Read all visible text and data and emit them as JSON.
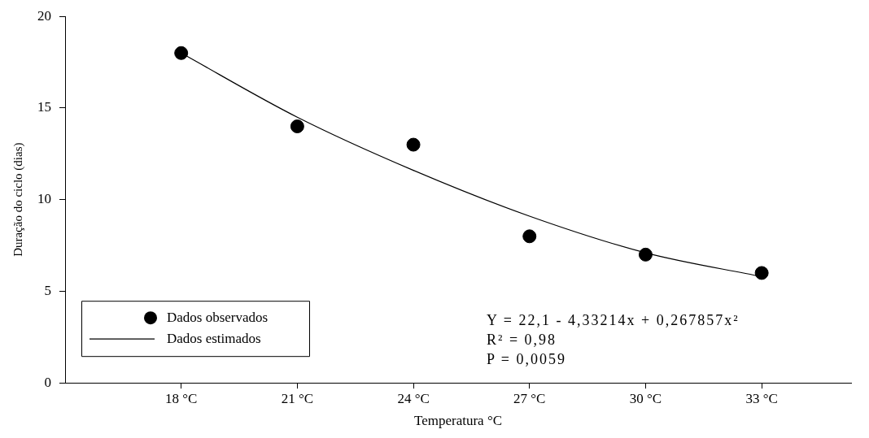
{
  "chart_data": {
    "type": "scatter",
    "xlabel": "Temperatura °C",
    "ylabel": "Duração do ciclo (dias)",
    "categories": [
      "18 °C",
      "21 °C",
      "24 °C",
      "27 °C",
      "30 °C",
      "33 °C"
    ],
    "series": [
      {
        "name": "Dados observados",
        "color": "#000000",
        "marker": "circle",
        "values": [
          18,
          14,
          13,
          8,
          7,
          6
        ]
      },
      {
        "name": "Dados estimados",
        "type": "line",
        "color": "#000000",
        "marker": "none",
        "line_style": "solid",
        "values": [
          18.0,
          14.5,
          11.6,
          9.1,
          7.1,
          5.8
        ]
      }
    ],
    "ylim": [
      0,
      20
    ],
    "yticks": [
      0,
      5,
      10,
      15,
      20
    ],
    "grid": false,
    "legend": "bottom left",
    "annotations": [
      "Y = 22,1 - 4,33214x + 0,267857x²",
      "R² = 0,98",
      "P = 0,0059"
    ]
  }
}
